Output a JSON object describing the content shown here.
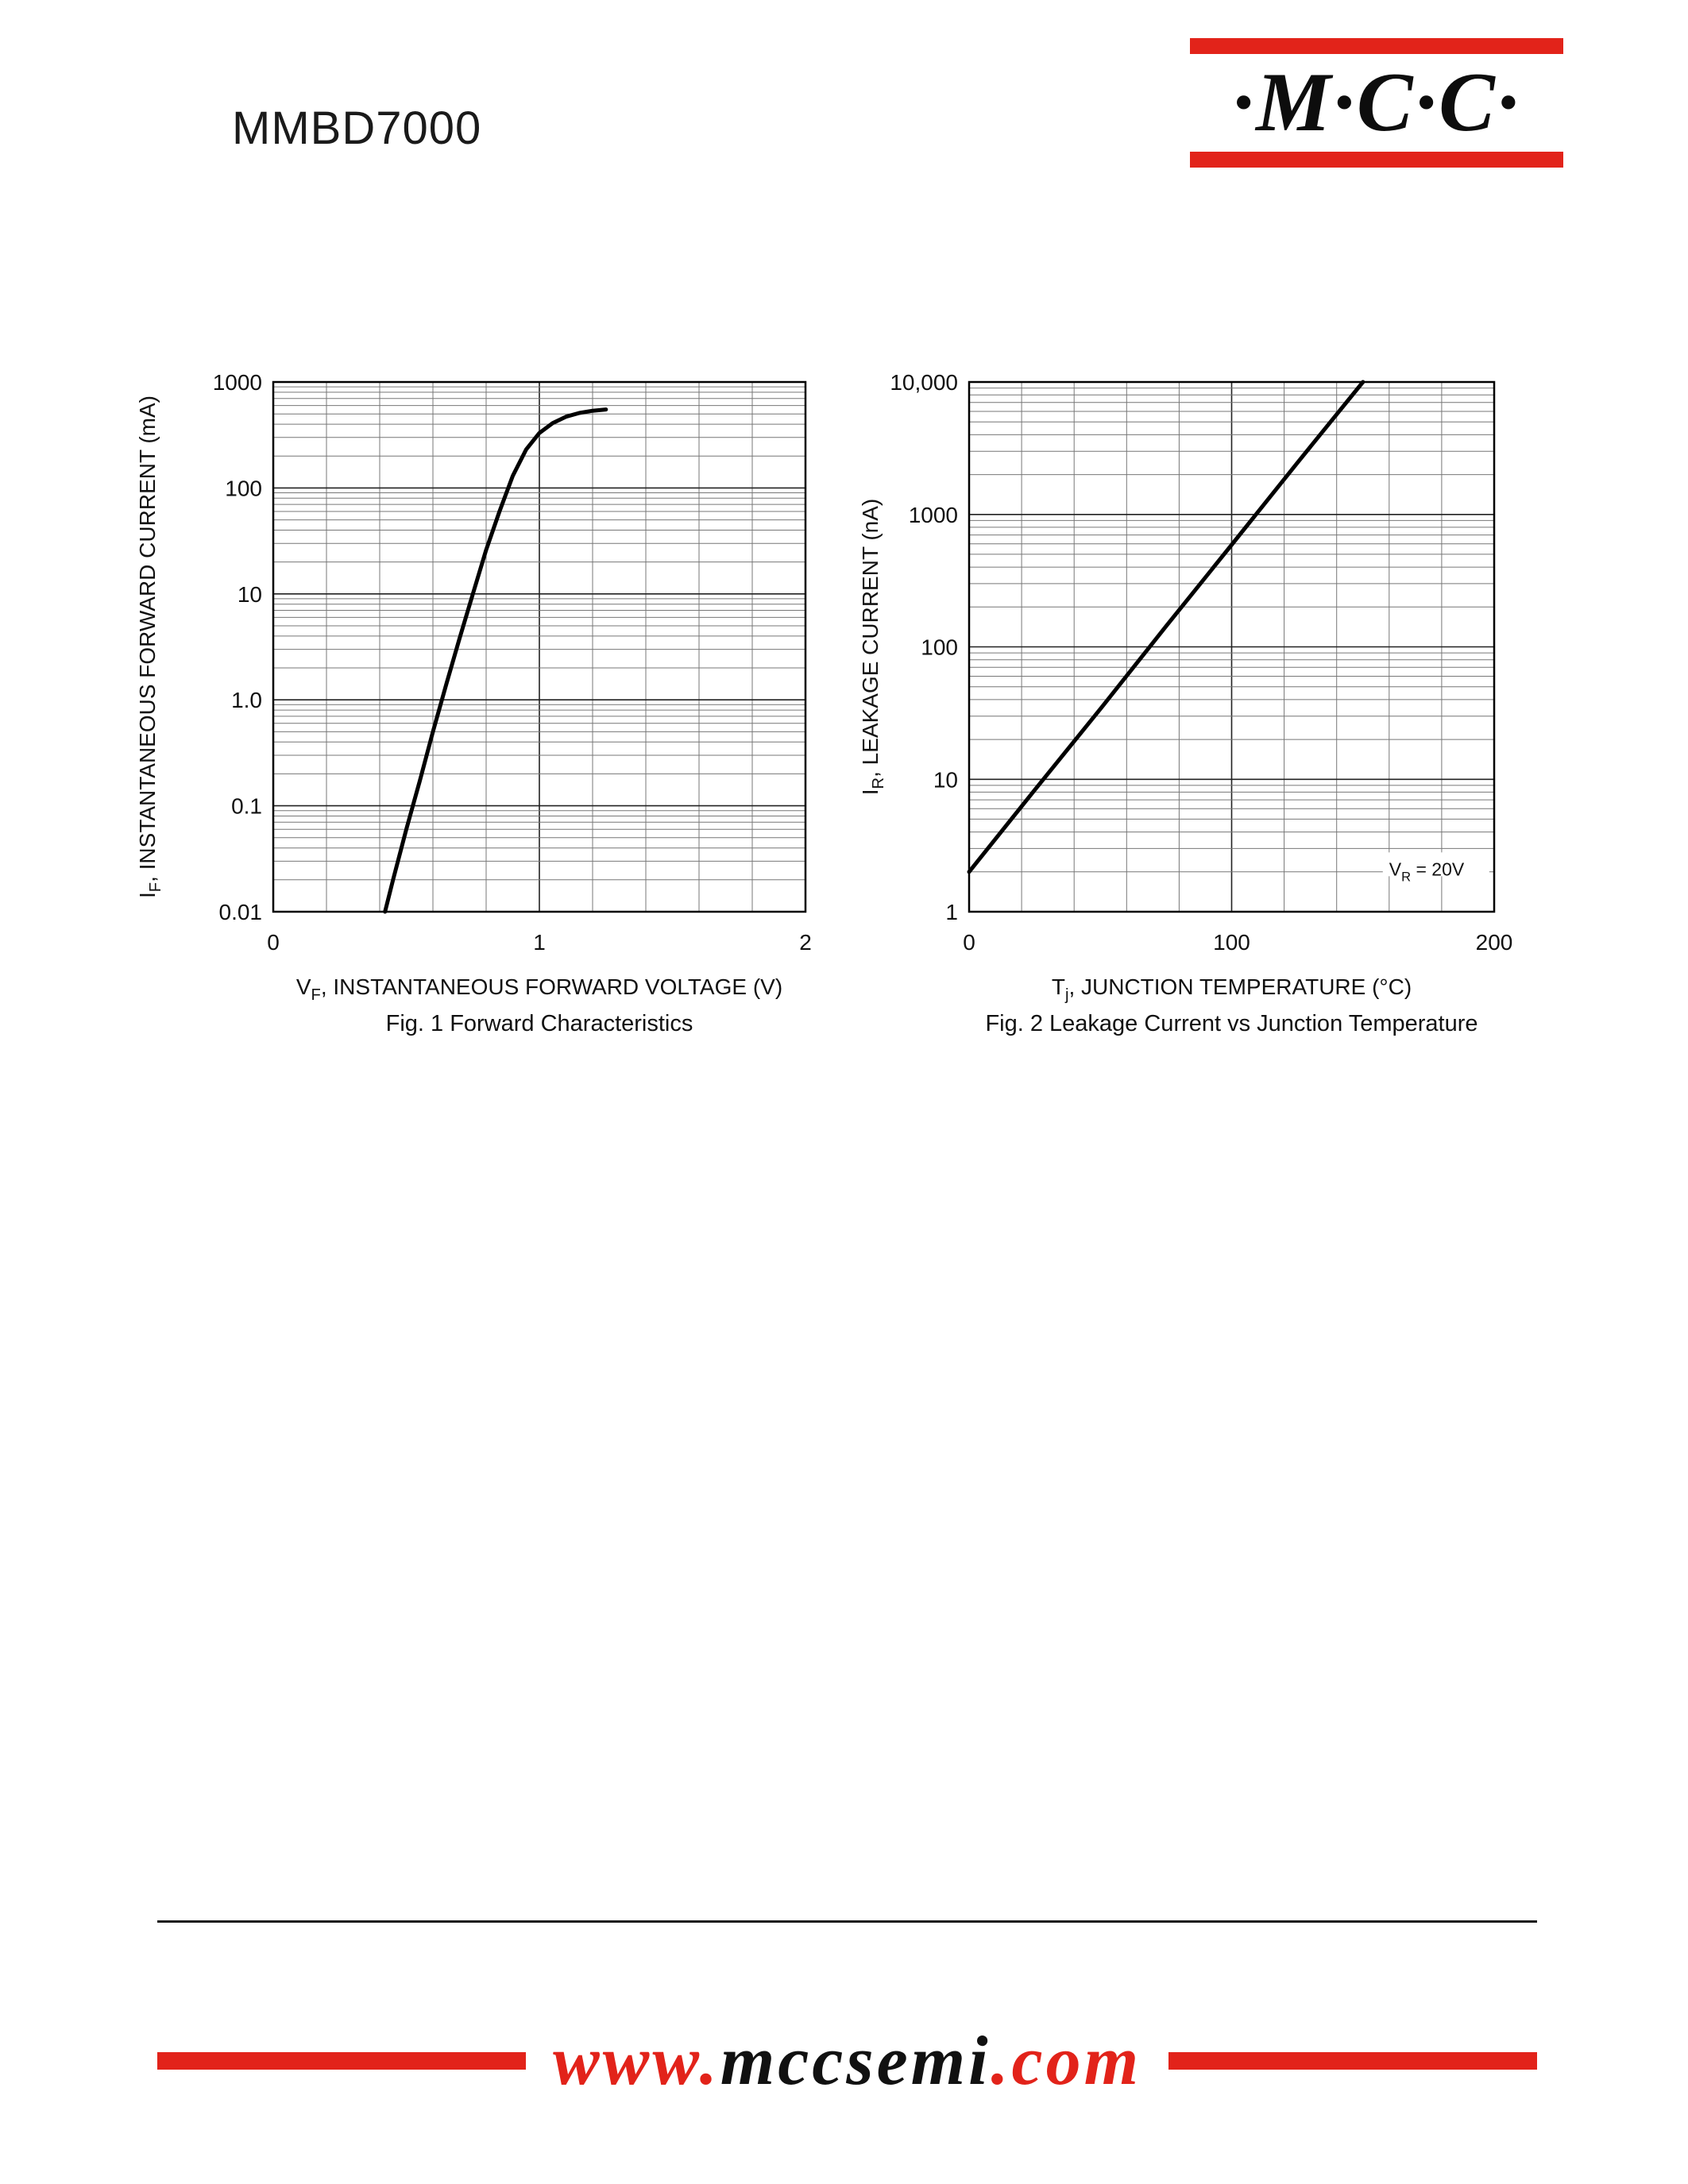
{
  "page": {
    "title": "MMBD7000"
  },
  "logo": {
    "text": "·M·C·C·"
  },
  "footer": {
    "www": "www.",
    "name": "mccsemi",
    "com": ".com"
  },
  "colors": {
    "accent_red": "#e2231a",
    "text": "#111111"
  },
  "chart_data": [
    {
      "type": "line",
      "title": "Fig. 1  Forward Characteristics",
      "xlabel": "V_F, INSTANTANEOUS FORWARD VOLTAGE (V)",
      "ylabel": "I_F, INSTANTANEOUS FORWARD CURRENT (mA)",
      "x_range": [
        0,
        2
      ],
      "x_ticks": [
        {
          "v": 0,
          "label": "0"
        },
        {
          "v": 1,
          "label": "1"
        },
        {
          "v": 2,
          "label": "2"
        }
      ],
      "x_minor_step": 0.2,
      "x_major": [
        1
      ],
      "y_scale": "log",
      "y_range": [
        0.01,
        1000
      ],
      "y_ticks": [
        {
          "v": 1000,
          "label": "1000"
        },
        {
          "v": 100,
          "label": "100"
        },
        {
          "v": 10,
          "label": "10"
        },
        {
          "v": 1,
          "label": "1.0"
        },
        {
          "v": 0.1,
          "label": "0.1"
        },
        {
          "v": 0.01,
          "label": "0.01"
        }
      ],
      "grid": true,
      "legend": "none",
      "series": [
        {
          "name": "forward-current",
          "points": [
            [
              0.42,
              0.01
            ],
            [
              0.45,
              0.02
            ],
            [
              0.5,
              0.06
            ],
            [
              0.55,
              0.17
            ],
            [
              0.6,
              0.5
            ],
            [
              0.65,
              1.4
            ],
            [
              0.7,
              3.8
            ],
            [
              0.75,
              10
            ],
            [
              0.8,
              26
            ],
            [
              0.85,
              60
            ],
            [
              0.9,
              130
            ],
            [
              0.95,
              230
            ],
            [
              1.0,
              330
            ],
            [
              1.05,
              410
            ],
            [
              1.1,
              470
            ],
            [
              1.15,
              510
            ],
            [
              1.2,
              535
            ],
            [
              1.25,
              550
            ]
          ]
        }
      ]
    },
    {
      "type": "line",
      "title": "Fig. 2  Leakage Current vs Junction Temperature",
      "xlabel": "T_j, JUNCTION TEMPERATURE (°C)",
      "ylabel": "I_R, LEAKAGE CURRENT (nA)",
      "x_range": [
        0,
        200
      ],
      "x_ticks": [
        {
          "v": 0,
          "label": "0"
        },
        {
          "v": 100,
          "label": "100"
        },
        {
          "v": 200,
          "label": "200"
        }
      ],
      "x_minor_step": 20,
      "x_major": [
        100
      ],
      "y_scale": "log",
      "y_range": [
        1,
        10000
      ],
      "y_ticks": [
        {
          "v": 10000,
          "label": "10,000"
        },
        {
          "v": 1000,
          "label": "1000"
        },
        {
          "v": 100,
          "label": "100"
        },
        {
          "v": 10,
          "label": "10"
        },
        {
          "v": 1,
          "label": "1"
        }
      ],
      "grid": true,
      "legend": "none",
      "annotation": {
        "text": "V_R = 20V",
        "x": 160,
        "y": 2.1
      },
      "series": [
        {
          "name": "leakage-current",
          "points": [
            [
              0,
              2
            ],
            [
              25,
              8.3
            ],
            [
              50,
              34
            ],
            [
              75,
              143
            ],
            [
              100,
              590
            ],
            [
              125,
              2450
            ],
            [
              150,
              10000
            ]
          ]
        }
      ]
    }
  ]
}
